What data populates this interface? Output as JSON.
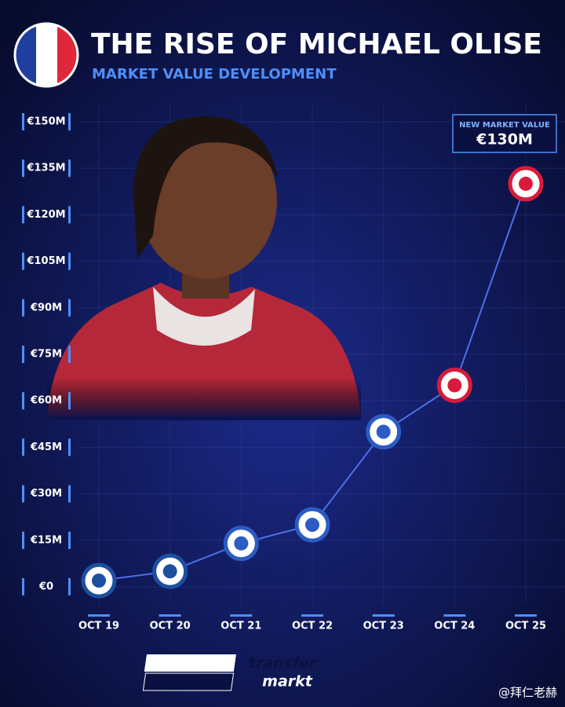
{
  "chart_data": {
    "type": "line",
    "title": "THE RISE OF MICHAEL OLISE",
    "subtitle": "MARKET VALUE DEVELOPMENT",
    "categories": [
      "OCT 19",
      "OCT 20",
      "OCT 21",
      "OCT 22",
      "OCT 23",
      "OCT 24",
      "OCT 25"
    ],
    "values": [
      2,
      5,
      14,
      20,
      50,
      65,
      130
    ],
    "value_labels": [
      null,
      null,
      null,
      null,
      null,
      null,
      "€130M"
    ],
    "annotation": "NEW MARKET VALUE",
    "color": "#4f6fe8",
    "marker_colors": [
      "#1d4fa0",
      "#1d4fa0",
      "#2c5bc4",
      "#2c5bc4",
      "#2c5bc4",
      "#d81b3c",
      "#d81b3c"
    ],
    "ylim": [
      0,
      150
    ],
    "yticks": [
      {
        "value": 0,
        "label": "€0"
      },
      {
        "value": 15,
        "label": "€15M"
      },
      {
        "value": 30,
        "label": "€30M"
      },
      {
        "value": 45,
        "label": "€45M"
      },
      {
        "value": 60,
        "label": "€60M"
      },
      {
        "value": 75,
        "label": "€75M"
      },
      {
        "value": 90,
        "label": "€90M"
      },
      {
        "value": 105,
        "label": "€105M"
      },
      {
        "value": 120,
        "label": "€120M"
      },
      {
        "value": 135,
        "label": "€135M"
      },
      {
        "value": 150,
        "label": "€150M"
      }
    ],
    "grid": true,
    "logo": [
      "transfer",
      "markt"
    ],
    "watermark": "@拜仁老赫"
  }
}
